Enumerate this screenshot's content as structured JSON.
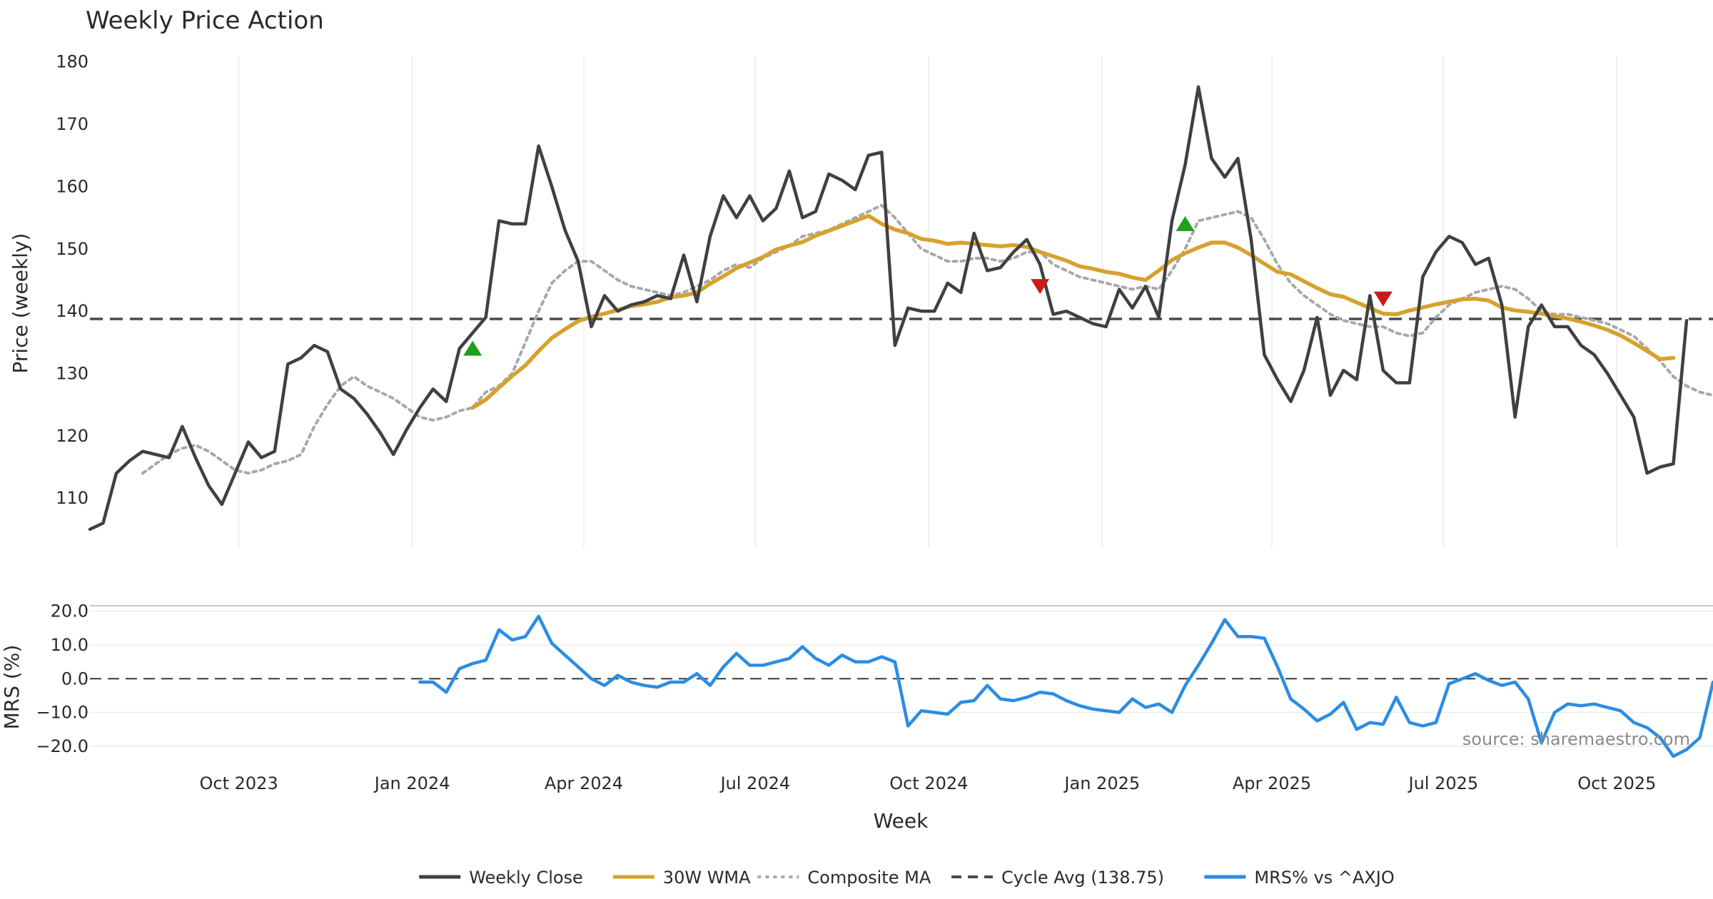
{
  "chart_data": {
    "type": "line",
    "title": "Weekly Price Action",
    "xlabel": "Week",
    "source": "source: sharemaestro.com",
    "x_start": "2023-07-14",
    "x_step_days": 7,
    "x_end": "2025-11-21",
    "x_ticks": [
      {
        "date": "2023-10-01",
        "label": "Oct 2023"
      },
      {
        "date": "2024-01-01",
        "label": "Jan 2024"
      },
      {
        "date": "2024-04-01",
        "label": "Apr 2024"
      },
      {
        "date": "2024-07-01",
        "label": "Jul 2024"
      },
      {
        "date": "2024-10-01",
        "label": "Oct 2024"
      },
      {
        "date": "2025-01-01",
        "label": "Jan 2025"
      },
      {
        "date": "2025-04-01",
        "label": "Apr 2025"
      },
      {
        "date": "2025-07-01",
        "label": "Jul 2025"
      },
      {
        "date": "2025-10-01",
        "label": "Oct 2025"
      }
    ],
    "price_panel": {
      "ylabel": "Price (weekly)",
      "ylim": [
        102,
        181
      ],
      "yticks": [
        {
          "value": 110,
          "label": "110"
        },
        {
          "value": 120,
          "label": "120"
        },
        {
          "value": 130,
          "label": "130"
        },
        {
          "value": 140,
          "label": "140"
        },
        {
          "value": 150,
          "label": "150"
        },
        {
          "value": 160,
          "label": "160"
        },
        {
          "value": 170,
          "label": "170"
        },
        {
          "value": 180,
          "label": "180"
        }
      ],
      "series": [
        {
          "name": "Weekly Close",
          "color": "#404040",
          "style": "solid",
          "start_index": 0,
          "values": [
            105,
            106,
            114,
            116,
            117.5,
            117,
            116.5,
            121.5,
            116.5,
            112,
            109,
            114,
            119,
            116.5,
            117.5,
            131.5,
            132.5,
            134.5,
            133.5,
            127.5,
            126,
            123.5,
            120.5,
            117,
            121,
            124.5,
            127.5,
            125.5,
            134,
            136.5,
            139,
            154.5,
            154,
            154,
            166.5,
            160,
            153,
            148,
            137.5,
            142.5,
            140,
            141,
            141.5,
            142.5,
            142,
            149,
            141.5,
            152,
            158.5,
            155,
            158.5,
            154.5,
            156.5,
            162.5,
            155,
            156,
            162,
            161,
            159.5,
            165,
            165.5,
            134.5,
            140.5,
            140,
            140,
            144.5,
            143,
            152.5,
            146.5,
            147,
            149.5,
            151.5,
            147.5,
            139.5,
            140,
            139,
            138,
            137.5,
            143.5,
            140.5,
            144,
            139,
            154.5,
            163.5,
            176,
            164.5,
            161.5,
            164.5,
            151.5,
            133,
            129,
            125.5,
            130.5,
            139,
            126.5,
            130.5,
            129,
            142.5,
            130.5,
            128.5,
            128.5,
            145.5,
            149.5,
            152,
            151,
            147.5,
            148.5,
            141,
            123,
            137.5,
            141,
            137.5,
            137.5,
            134.5,
            133,
            130,
            126.5,
            123,
            114,
            115,
            115.5,
            138.5
          ]
        },
        {
          "name": "30W WMA",
          "color": "#d6a22e",
          "style": "solid",
          "start_index": 29,
          "values": [
            124.5,
            125.8,
            127.7,
            129.6,
            131.3,
            133.6,
            135.7,
            137.1,
            138.4,
            139.1,
            139.6,
            140.2,
            140.8,
            141.1,
            141.5,
            142.2,
            142.5,
            143,
            144.4,
            145.6,
            146.9,
            147.8,
            148.7,
            149.9,
            150.5,
            151.1,
            152.1,
            152.9,
            153.7,
            154.5,
            155.3,
            154,
            153.1,
            152.5,
            151.6,
            151.3,
            150.8,
            151,
            150.8,
            150.6,
            150.4,
            150.6,
            150.3,
            149.5,
            148.8,
            148.1,
            147.2,
            146.8,
            146.3,
            146,
            145.4,
            145,
            146.5,
            148.2,
            149.3,
            150.2,
            151,
            151,
            150.2,
            149,
            147.6,
            146.3,
            145.9,
            144.8,
            143.7,
            142.7,
            142.3,
            141.4,
            140.5,
            139.6,
            139.5,
            140.1,
            140.6,
            141.1,
            141.5,
            141.9,
            142,
            141.7,
            140.6,
            140.1,
            139.9,
            139.6,
            139.2,
            138.8,
            138.3,
            137.7,
            137,
            136.1,
            134.9,
            133.6,
            132.3,
            132.5
          ]
        },
        {
          "name": "Composite MA",
          "color": "#a8a8a8",
          "style": "dotted",
          "start_index": 4,
          "values": [
            114,
            115.5,
            117,
            118,
            118.5,
            117.5,
            116,
            114.5,
            114,
            114.5,
            115.5,
            116,
            117,
            121.5,
            125,
            128,
            129.5,
            128,
            127,
            126,
            124.5,
            123,
            122.5,
            123,
            124,
            124.5,
            127,
            128,
            130,
            135,
            140,
            144.5,
            146.5,
            148,
            148,
            146.5,
            145,
            144,
            143.5,
            143,
            142.5,
            143,
            144,
            145,
            146.5,
            147.5,
            147,
            148.5,
            149.5,
            150.5,
            152,
            152.5,
            153,
            154,
            155,
            156,
            157,
            155,
            152.5,
            150,
            149,
            148,
            148,
            148.5,
            148.5,
            148,
            148.5,
            149.5,
            149.5,
            147.5,
            146.5,
            145.5,
            145,
            144.5,
            144,
            143.5,
            144,
            143.5,
            146.5,
            150,
            154.5,
            155,
            155.5,
            156,
            155,
            151.5,
            147.5,
            144.5,
            142.5,
            141,
            139.5,
            138.5,
            138,
            137.5,
            137.5,
            136.5,
            136,
            136.5,
            139,
            141,
            142,
            143,
            143.5,
            144,
            143.5,
            142,
            140,
            139.5,
            139.5,
            139,
            138.5,
            138,
            137,
            136,
            134,
            132,
            129.5,
            128,
            127,
            126.5
          ]
        },
        {
          "name": "Cycle Avg (138.75)",
          "color": "#4a4a4a",
          "style": "dashed",
          "constant": 138.75
        }
      ],
      "markers": [
        {
          "type": "buy",
          "index": 29,
          "value": 134,
          "color": "#1ea01e"
        },
        {
          "type": "sell",
          "index": 72,
          "value": 144,
          "color": "#cc1a1a"
        },
        {
          "type": "buy",
          "index": 83,
          "value": 154,
          "color": "#1ea01e"
        },
        {
          "type": "sell",
          "index": 98,
          "value": 142,
          "color": "#cc1a1a"
        }
      ]
    },
    "mrs_panel": {
      "ylabel": "MRS (%)",
      "ylim": [
        -23,
        21
      ],
      "yticks": [
        {
          "value": 20,
          "label": "20.0"
        },
        {
          "value": 10,
          "label": "10.0"
        },
        {
          "value": 0,
          "label": "0.0"
        },
        {
          "value": -10,
          "label": "−10.0"
        },
        {
          "value": -20,
          "label": "−20.0"
        }
      ],
      "zero_line": 0,
      "series": [
        {
          "name": "MRS% vs ^AXJO",
          "color": "#2b8de3",
          "style": "solid",
          "start_index": 25,
          "values": [
            -1,
            -1,
            -4,
            3,
            4.5,
            5.5,
            14.5,
            11.5,
            12.5,
            18.5,
            10.5,
            7,
            3.5,
            0,
            -2,
            1,
            -1,
            -2,
            -2.5,
            -1,
            -1,
            1.5,
            -2,
            3.5,
            7.5,
            4,
            4,
            5,
            6,
            9.5,
            6,
            4,
            7,
            5,
            5,
            6.5,
            5,
            -14,
            -9.5,
            -10,
            -10.5,
            -7,
            -6.5,
            -2,
            -6,
            -6.5,
            -5.5,
            -4,
            -4.5,
            -6.5,
            -8,
            -9,
            -9.5,
            -10,
            -6,
            -8.5,
            -7.5,
            -10,
            -2,
            4,
            10.5,
            17.5,
            12.5,
            12.5,
            12,
            3.5,
            -6,
            -9,
            -12.5,
            -10.5,
            -7,
            -15,
            -13,
            -13.5,
            -5.5,
            -13,
            -14,
            -13,
            -1.5,
            0,
            1.5,
            -0.5,
            -2,
            -1,
            -6,
            -19,
            -10,
            -7.5,
            -8,
            -7.5,
            -8.5,
            -9.5,
            -13,
            -14.5,
            -17.5,
            -23,
            -21,
            -17.5,
            -1
          ]
        }
      ]
    },
    "legend": [
      {
        "label": "Weekly Close",
        "color": "#404040",
        "style": "solid"
      },
      {
        "label": "30W WMA",
        "color": "#d6a22e",
        "style": "solid"
      },
      {
        "label": "Composite MA",
        "color": "#a8a8a8",
        "style": "dotted"
      },
      {
        "label": "Cycle Avg (138.75)",
        "color": "#4a4a4a",
        "style": "dashed"
      },
      {
        "label": "MRS% vs ^AXJO",
        "color": "#2b8de3",
        "style": "solid"
      }
    ],
    "legend_position": "bottom-center"
  }
}
